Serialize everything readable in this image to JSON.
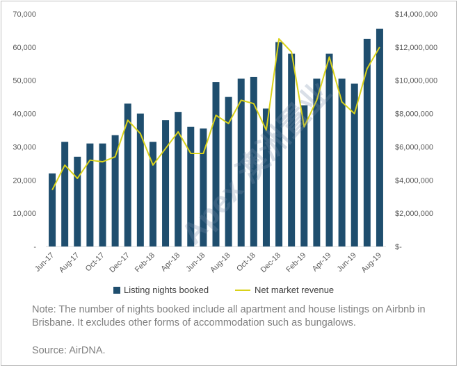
{
  "chart_data": {
    "type": "bar",
    "categories": [
      "Jun-17",
      "Jul-17",
      "Aug-17",
      "Sep-17",
      "Oct-17",
      "Nov-17",
      "Dec-17",
      "Jan-18",
      "Feb-18",
      "Mar-18",
      "Apr-18",
      "May-18",
      "Jun-18",
      "Jul-18",
      "Aug-18",
      "Sep-18",
      "Oct-18",
      "Nov-18",
      "Dec-18",
      "Jan-19",
      "Feb-19",
      "Mar-19",
      "Apr-19",
      "May-19",
      "Jun-19",
      "Jul-19",
      "Aug-19"
    ],
    "shown_x_labels": [
      "Jun-17",
      "Aug-17",
      "Oct-17",
      "Dec-17",
      "Feb-18",
      "Apr-18",
      "Jun-18",
      "Aug-18",
      "Oct-18",
      "Dec-18",
      "Feb-19",
      "Apr-19",
      "Jun-19",
      "Aug-19"
    ],
    "series": [
      {
        "name": "Listing nights booked",
        "axis": "left",
        "color": "#1f4e6e",
        "values": [
          22000,
          31500,
          27000,
          31000,
          31000,
          33500,
          43000,
          40000,
          31500,
          38000,
          40500,
          36000,
          35500,
          49500,
          45000,
          50500,
          51000,
          41500,
          61500,
          58000,
          42500,
          50500,
          58000,
          50500,
          49000,
          62500,
          65500
        ]
      },
      {
        "name": "Net market revenue",
        "axis": "right",
        "color": "#d9d21a",
        "values": [
          3400000,
          4900000,
          4100000,
          5200000,
          5100000,
          5400000,
          7600000,
          6800000,
          4900000,
          5900000,
          6900000,
          5600000,
          5600000,
          7900000,
          7400000,
          8800000,
          8600000,
          7000000,
          12500000,
          11700000,
          7200000,
          8800000,
          11400000,
          8700000,
          8000000,
          10700000,
          12000000
        ]
      }
    ],
    "y_left": {
      "ylim": [
        0,
        70000
      ],
      "tick_labels": [
        "-",
        "10,000",
        "20,000",
        "30,000",
        "40,000",
        "50,000",
        "60,000",
        "70,000"
      ]
    },
    "y_right": {
      "ylim": [
        0,
        14000000
      ],
      "tick_labels": [
        "$-",
        "$2,000,000",
        "$4,000,000",
        "$6,000,000",
        "$8,000,000",
        "$10,000,000",
        "$12,000,000",
        "$14,000,000"
      ]
    },
    "legend": {
      "placement": "bottom",
      "bar_label": "Listing nights booked",
      "line_label": "Net market revenue"
    }
  },
  "note": "Note: The number of nights booked include all apartment and house listings on Airbnb in Brisbane. It excludes other forms of accommodation such as bungalows.",
  "source": "Source: AirDNA.",
  "watermark": "Apex 澳洲置业"
}
